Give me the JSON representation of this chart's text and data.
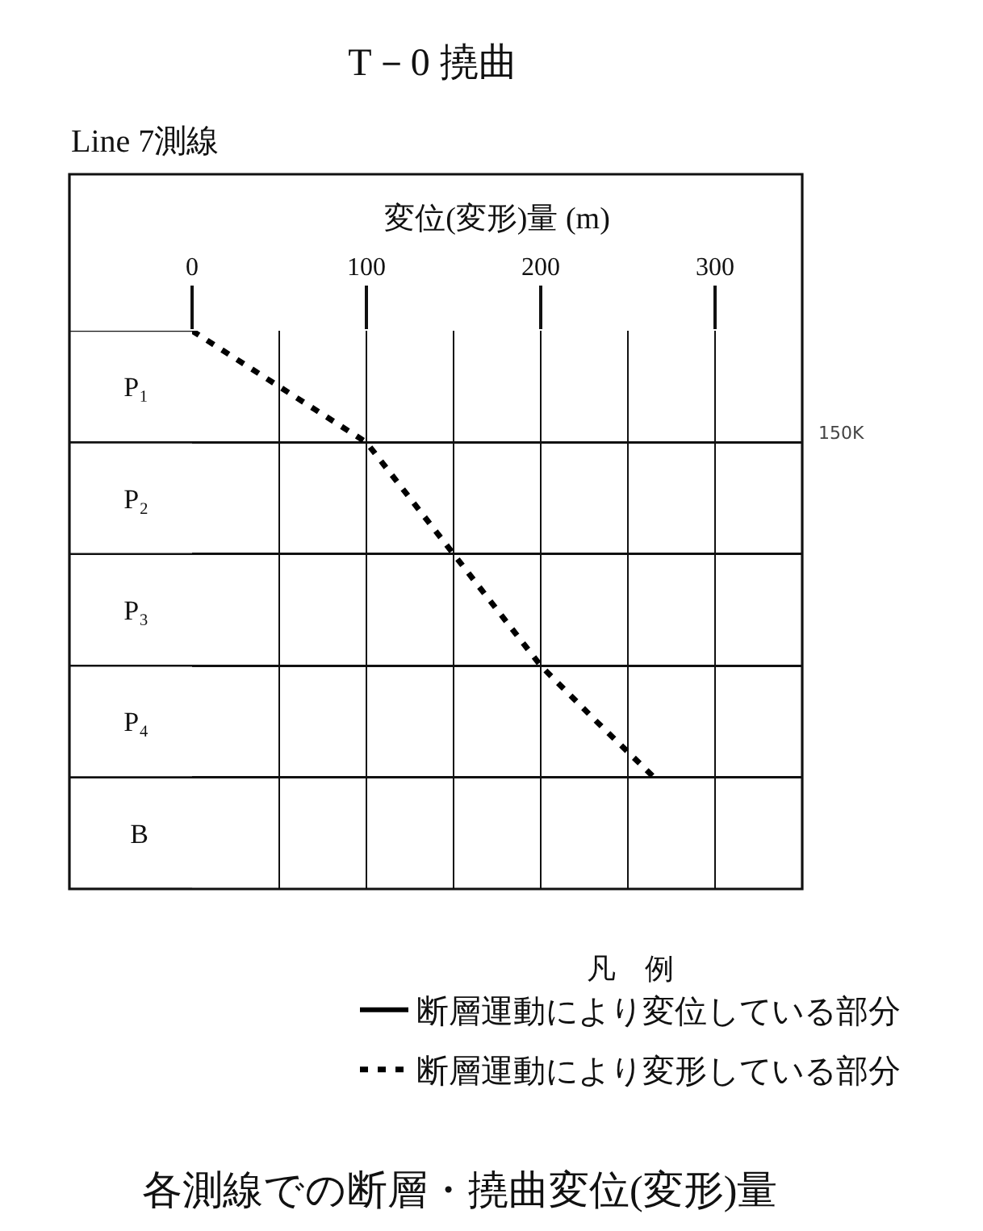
{
  "chart_data": {
    "type": "line",
    "title": "T－0 撓曲",
    "subtitle": "Line 7測線",
    "xlabel": "変位(変形)量 (m)",
    "legend_title": "凡　例",
    "orientation": "horizontal",
    "categories": [
      null,
      "P₁",
      null,
      "P₂",
      null,
      "P₃",
      null,
      "P₄",
      null,
      "B",
      null
    ],
    "series": [
      {
        "name": "断層運動により変位している部分",
        "color": "#000000",
        "line_style": "solid",
        "values": [
          null,
          null,
          null,
          null,
          null,
          null,
          null,
          null,
          null,
          null,
          null
        ]
      },
      {
        "name": "断層運動により変形している部分",
        "color": "#000000",
        "line_style": "dashed",
        "values": [
          0,
          50,
          100,
          125,
          150,
          175,
          200,
          232,
          265,
          null,
          null
        ]
      }
    ],
    "xlim": [
      0,
      350
    ],
    "xticks": [
      0,
      {
        "value": 50,
        "label": null
      },
      100,
      {
        "value": 150,
        "label": null
      },
      200,
      {
        "value": 250,
        "label": null
      },
      300
    ],
    "grid": true,
    "legend": "bottom",
    "marker": "none",
    "annotations": [
      "各測線での断層・撓曲変位(変形)量",
      "150K"
    ]
  }
}
